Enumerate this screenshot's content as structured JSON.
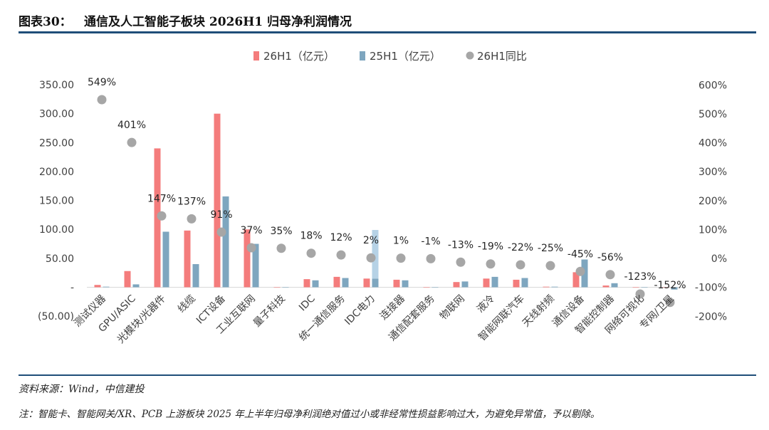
{
  "header": {
    "figure_no": "图表30：",
    "title": "通信及人工智能子板块 2026H1 归母净利润情况"
  },
  "footer": {
    "source": "资料来源：Wind，中信建投",
    "note": "注：智能卡、智能网关/XR、PCB 上游板块 2025 年上半年归母净利润绝对值过小或非经常性损益影响过大，为避免异常值，予以剔除。"
  },
  "colors": {
    "bar_26h1": "#f47c7c",
    "bar_25h1": "#7ea6bf",
    "bar_25h1_light": "#b6d2e6",
    "dot": "#a6a6a6",
    "rule": "#1f4e79"
  },
  "chart_data": {
    "type": "bar",
    "legend_position": "top",
    "grid": false,
    "categories": [
      "测试仪器",
      "GPU/ASIC",
      "光模块/光器件",
      "线缆",
      "ICT设备",
      "工业互联网",
      "量子科技",
      "IDC",
      "统一通信服务",
      "IDC电力",
      "连接器",
      "通信配套服务",
      "物联网",
      "液冷",
      "智能网联汽车",
      "天线射频",
      "通信设备",
      "智能控制器",
      "网络可视化",
      "专网/卫星"
    ],
    "series": [
      {
        "name": "26H1（亿元）",
        "kind": "bar",
        "axis": "left",
        "values": [
          4,
          28,
          240,
          98,
          300,
          100,
          0,
          14,
          18,
          15,
          13,
          0,
          9,
          15,
          13,
          1,
          26,
          3,
          0,
          0
        ]
      },
      {
        "name": "25H1（亿元）",
        "kind": "bar",
        "axis": "left",
        "values": [
          1,
          5,
          96,
          40,
          157,
          75,
          0,
          12,
          16,
          15,
          12,
          0,
          10,
          18,
          16,
          1,
          48,
          7,
          0,
          -4
        ]
      },
      {
        "name": "26H1同比",
        "kind": "scatter",
        "axis": "right",
        "unit": "%",
        "values": [
          549,
          401,
          147,
          137,
          91,
          37,
          35,
          18,
          12,
          2,
          1,
          -1,
          -13,
          -19,
          -22,
          -25,
          -45,
          -56,
          -123,
          -152
        ],
        "labels": [
          "549%",
          "401%",
          "147%",
          "137%",
          "91%",
          "37%",
          "35%",
          "18%",
          "12%",
          "2%",
          "1%",
          "-1%",
          "-13%",
          "-19%",
          "-22%",
          "-25%",
          "-45%",
          "-56%",
          "-123%",
          "-152%"
        ]
      }
    ],
    "annotations": [
      {
        "category": "IDC电力",
        "series": "25H1（亿元）",
        "extra_value": 99,
        "note": "light blue stacked segment"
      }
    ],
    "y_left": {
      "ylim": [
        -50,
        350
      ],
      "ticks": [
        -50,
        0,
        50,
        100,
        150,
        200,
        250,
        300,
        350
      ],
      "tick_labels": [
        "(50.00)",
        "-",
        "50.00",
        "100.00",
        "150.00",
        "200.00",
        "250.00",
        "300.00",
        "350.00"
      ]
    },
    "y_right": {
      "ylim": [
        -200,
        600
      ],
      "ticks": [
        -200,
        -100,
        0,
        100,
        200,
        300,
        400,
        500,
        600
      ],
      "tick_labels": [
        "-200%",
        "-100%",
        "0%",
        "100%",
        "200%",
        "300%",
        "400%",
        "500%",
        "600%"
      ]
    }
  }
}
